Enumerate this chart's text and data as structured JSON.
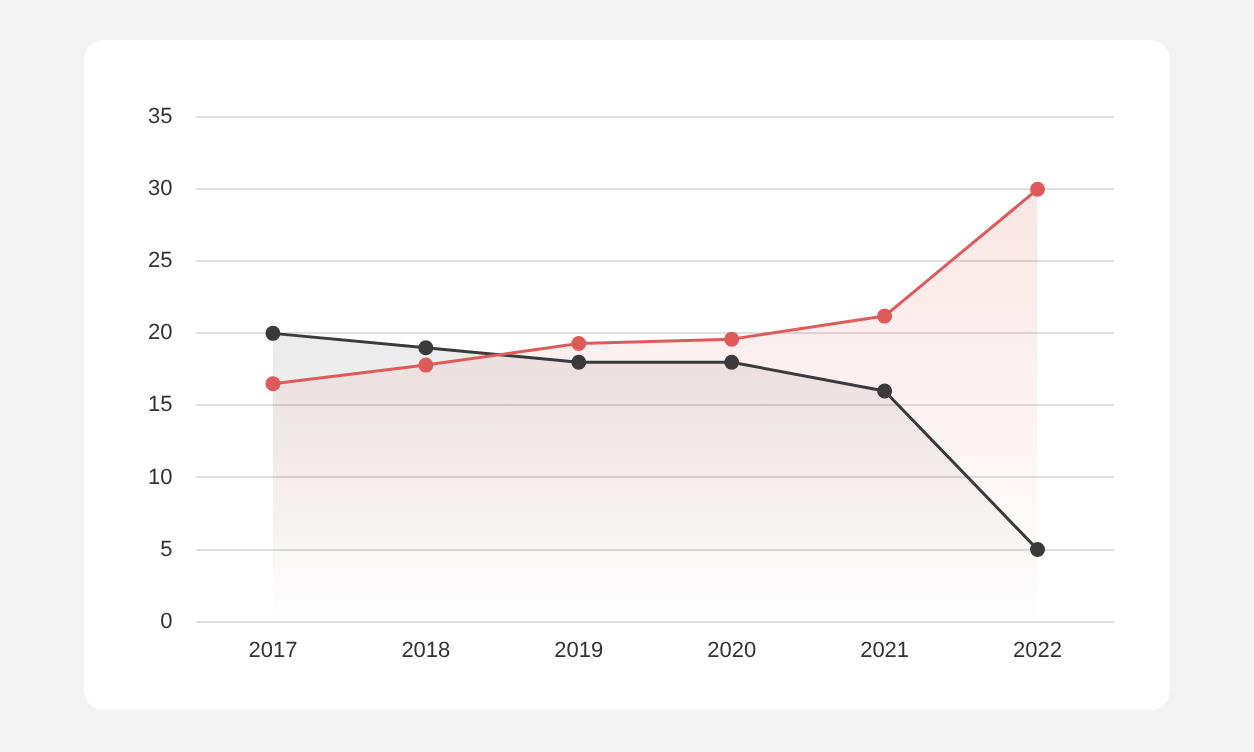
{
  "chart_data": {
    "type": "area",
    "categories": [
      "2017",
      "2018",
      "2019",
      "2020",
      "2021",
      "2022"
    ],
    "series": [
      {
        "color": "#3a3a3a",
        "values": [
          20,
          19,
          18,
          18,
          16,
          5
        ]
      },
      {
        "color": "#de5b5b",
        "values": [
          16.5,
          17.8,
          19.3,
          19.6,
          21.2,
          30
        ]
      }
    ],
    "ylim": [
      0,
      35
    ],
    "yticks": [
      0,
      5,
      10,
      15,
      20,
      25,
      30,
      35
    ],
    "grid": "y",
    "legend": false,
    "marker": "circle",
    "line_style": "solid"
  }
}
